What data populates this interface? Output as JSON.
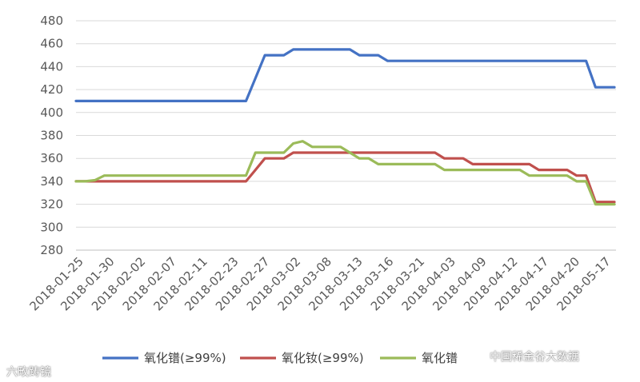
{
  "chart_data": {
    "type": "line",
    "title": "",
    "xlabel": "",
    "ylabel": "",
    "ylim": [
      280,
      480
    ],
    "y_ticks": [
      280,
      300,
      320,
      340,
      360,
      380,
      400,
      420,
      440,
      460,
      480
    ],
    "x_tick_labels": [
      "2018-01-25",
      "2018-01-30",
      "2018-02-02",
      "2018-02-07",
      "2018-02-11",
      "2018-02-23",
      "2018-02-27",
      "2018-03-02",
      "2018-03-08",
      "2018-03-13",
      "2018-03-16",
      "2018-03-21",
      "2018-04-03",
      "2018-04-09",
      "2018-04-12",
      "2018-04-17",
      "2018-04-20",
      "2018-05-17"
    ],
    "grid": true,
    "legend_position": "bottom",
    "series": [
      {
        "name": "氧化镨(≥99%)",
        "color": "#4472C4",
        "values": [
          410,
          410,
          410,
          410,
          410,
          410,
          410,
          410,
          410,
          410,
          410,
          410,
          410,
          410,
          410,
          410,
          410,
          410,
          410,
          430,
          450,
          450,
          450,
          455,
          455,
          455,
          455,
          455,
          455,
          455,
          450,
          450,
          450,
          445,
          445,
          445,
          445,
          445,
          445,
          445,
          445,
          445,
          445,
          445,
          445,
          445,
          445,
          445,
          445,
          445,
          445,
          445,
          445,
          445,
          445,
          422,
          422,
          422
        ]
      },
      {
        "name": "氧化钕(≥99%)",
        "color": "#C0504D",
        "values": [
          340,
          340,
          340,
          340,
          340,
          340,
          340,
          340,
          340,
          340,
          340,
          340,
          340,
          340,
          340,
          340,
          340,
          340,
          340,
          350,
          360,
          360,
          360,
          365,
          365,
          365,
          365,
          365,
          365,
          365,
          365,
          365,
          365,
          365,
          365,
          365,
          365,
          365,
          365,
          360,
          360,
          360,
          355,
          355,
          355,
          355,
          355,
          355,
          355,
          350,
          350,
          350,
          350,
          345,
          345,
          322,
          322,
          322
        ]
      },
      {
        "name": "氧化镨",
        "color": "#9BBB59",
        "values": [
          340,
          340,
          341,
          345,
          345,
          345,
          345,
          345,
          345,
          345,
          345,
          345,
          345,
          345,
          345,
          345,
          345,
          345,
          345,
          365,
          365,
          365,
          365,
          373,
          375,
          370,
          370,
          370,
          370,
          365,
          360,
          360,
          355,
          355,
          355,
          355,
          355,
          355,
          355,
          350,
          350,
          350,
          350,
          350,
          350,
          350,
          350,
          350,
          345,
          345,
          345,
          345,
          345,
          340,
          340,
          320,
          320,
          320
        ]
      }
    ]
  },
  "legend": {
    "items": [
      "氧化镨(≥99%)",
      "氧化钕(≥99%)",
      "氧化镨"
    ]
  },
  "watermarks": {
    "left": "六畋踌镜",
    "right": "中国稀金谷大数据"
  }
}
